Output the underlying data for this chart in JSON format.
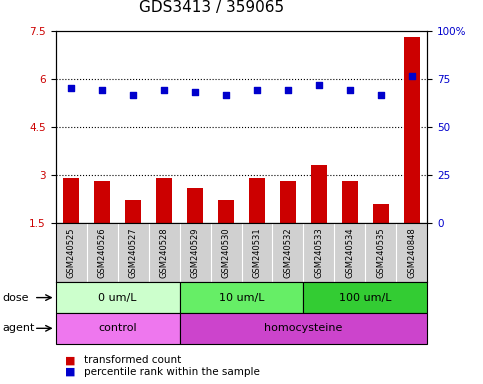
{
  "title": "GDS3413 / 359065",
  "samples": [
    "GSM240525",
    "GSM240526",
    "GSM240527",
    "GSM240528",
    "GSM240529",
    "GSM240530",
    "GSM240531",
    "GSM240532",
    "GSM240533",
    "GSM240534",
    "GSM240535",
    "GSM240848"
  ],
  "bar_values": [
    2.9,
    2.8,
    2.2,
    2.9,
    2.6,
    2.2,
    2.9,
    2.8,
    3.3,
    2.8,
    2.1,
    7.3
  ],
  "scatter_values": [
    5.7,
    5.65,
    5.5,
    5.65,
    5.6,
    5.5,
    5.65,
    5.65,
    5.8,
    5.65,
    5.5,
    6.1
  ],
  "bar_color": "#cc0000",
  "scatter_color": "#0000cc",
  "ylim_left": [
    1.5,
    7.5
  ],
  "ylim_right": [
    0,
    100
  ],
  "yticks_left": [
    1.5,
    3.0,
    4.5,
    6.0,
    7.5
  ],
  "yticks_right": [
    0,
    25,
    50,
    75,
    100
  ],
  "grid_lines": [
    3.0,
    4.5,
    6.0
  ],
  "dose_groups": [
    {
      "label": "0 um/L",
      "start": 0,
      "end": 4,
      "color": "#ccffcc"
    },
    {
      "label": "10 um/L",
      "start": 4,
      "end": 8,
      "color": "#66ee66"
    },
    {
      "label": "100 um/L",
      "start": 8,
      "end": 12,
      "color": "#33cc33"
    }
  ],
  "agent_groups": [
    {
      "label": "control",
      "start": 0,
      "end": 4,
      "color": "#ee77ee"
    },
    {
      "label": "homocysteine",
      "start": 4,
      "end": 12,
      "color": "#cc44cc"
    }
  ],
  "dose_label": "dose",
  "agent_label": "agent",
  "legend_bar": "transformed count",
  "legend_scatter": "percentile rank within the sample",
  "sample_bg_color": "#d0d0d0",
  "title_fontsize": 11,
  "tick_fontsize": 7.5,
  "label_fontsize": 8,
  "row_fontsize": 8
}
